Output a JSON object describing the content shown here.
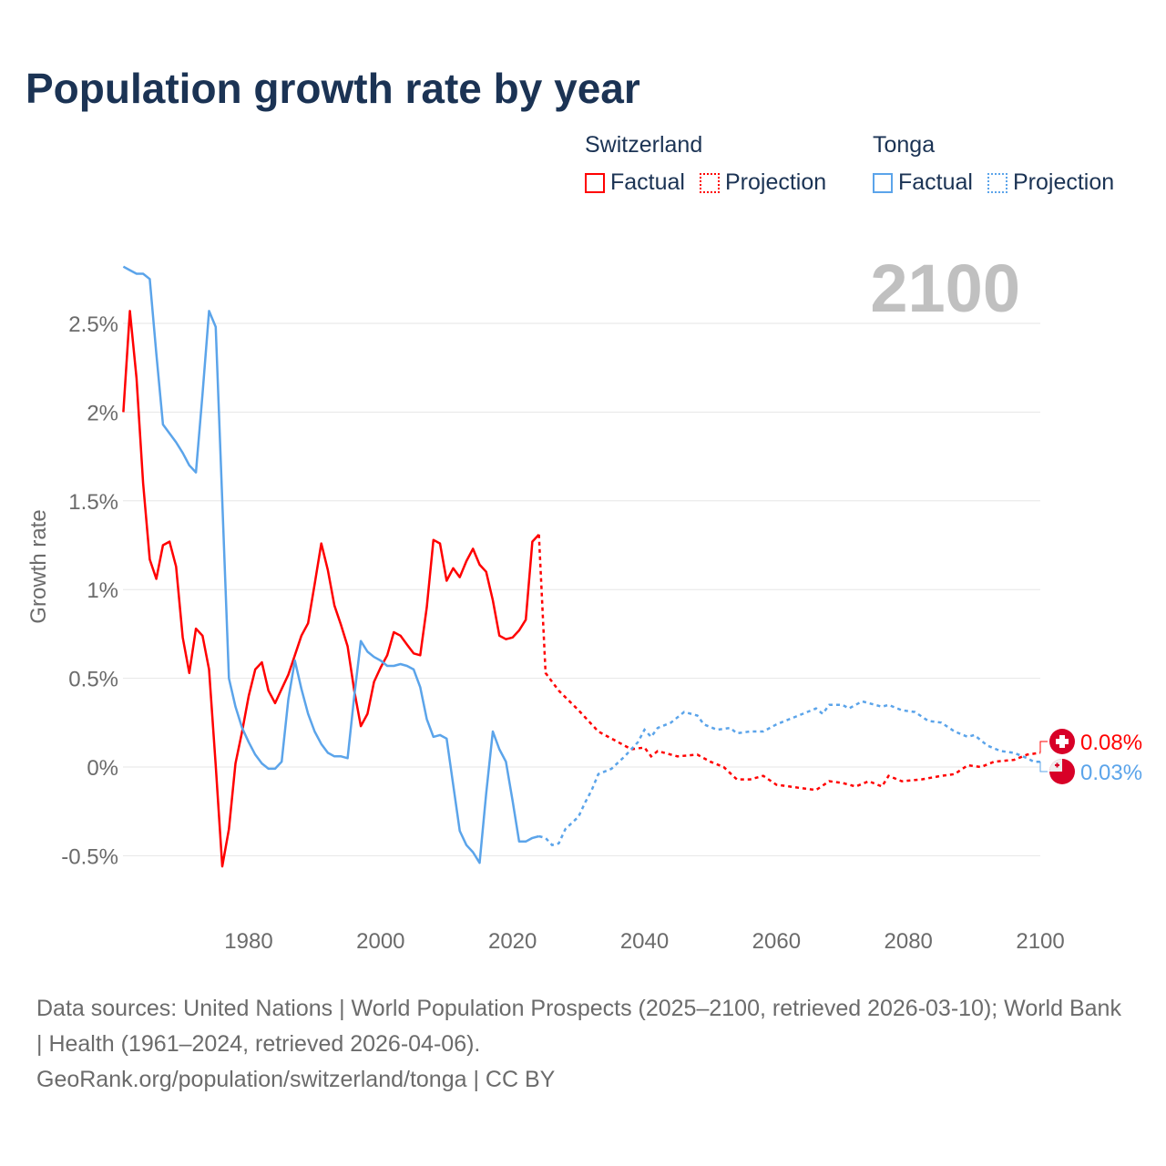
{
  "chart_data": {
    "type": "line",
    "title": "Population growth rate by year",
    "ylabel": "Growth rate",
    "xlabel": "",
    "xlim": [
      1961,
      2100
    ],
    "ylim": [
      -0.7,
      2.9
    ],
    "x_ticks": [
      1980,
      2000,
      2020,
      2040,
      2060,
      2080,
      2100
    ],
    "x_tick_labels": [
      "1980",
      "2000",
      "2020",
      "2040",
      "2060",
      "2080",
      "2100"
    ],
    "y_ticks": [
      -0.5,
      0,
      0.5,
      1,
      1.5,
      2,
      2.5
    ],
    "y_tick_labels": [
      "-0.5%",
      "0%",
      "0.5%",
      "1%",
      "1.5%",
      "2%",
      "2.5%"
    ],
    "grid": true,
    "current_year": "2100",
    "legend": {
      "placement": "top-right",
      "groups": [
        {
          "name": "Switzerland",
          "items": [
            "Factual",
            "Projection"
          ]
        },
        {
          "name": "Tonga",
          "items": [
            "Factual",
            "Projection"
          ]
        }
      ]
    },
    "series": [
      {
        "name": "Switzerland",
        "color": "#ff0000",
        "end_label": "0.08%",
        "factual": [
          [
            1961,
            2.0
          ],
          [
            1962,
            2.57
          ],
          [
            1963,
            2.19
          ],
          [
            1964,
            1.6
          ],
          [
            1965,
            1.17
          ],
          [
            1966,
            1.06
          ],
          [
            1967,
            1.25
          ],
          [
            1968,
            1.27
          ],
          [
            1969,
            1.13
          ],
          [
            1970,
            0.73
          ],
          [
            1971,
            0.53
          ],
          [
            1972,
            0.78
          ],
          [
            1973,
            0.74
          ],
          [
            1974,
            0.55
          ],
          [
            1975,
            0.01
          ],
          [
            1976,
            -0.56
          ],
          [
            1977,
            -0.35
          ],
          [
            1978,
            0.02
          ],
          [
            1979,
            0.2
          ],
          [
            1980,
            0.4
          ],
          [
            1981,
            0.55
          ],
          [
            1982,
            0.59
          ],
          [
            1983,
            0.43
          ],
          [
            1984,
            0.36
          ],
          [
            1985,
            0.44
          ],
          [
            1986,
            0.52
          ],
          [
            1987,
            0.63
          ],
          [
            1988,
            0.74
          ],
          [
            1989,
            0.81
          ],
          [
            1990,
            1.03
          ],
          [
            1991,
            1.26
          ],
          [
            1992,
            1.11
          ],
          [
            1993,
            0.91
          ],
          [
            1994,
            0.8
          ],
          [
            1995,
            0.68
          ],
          [
            1996,
            0.43
          ],
          [
            1997,
            0.23
          ],
          [
            1998,
            0.3
          ],
          [
            1999,
            0.48
          ],
          [
            2000,
            0.56
          ],
          [
            2001,
            0.63
          ],
          [
            2002,
            0.76
          ],
          [
            2003,
            0.74
          ],
          [
            2004,
            0.69
          ],
          [
            2005,
            0.64
          ],
          [
            2006,
            0.63
          ],
          [
            2007,
            0.9
          ],
          [
            2008,
            1.28
          ],
          [
            2009,
            1.26
          ],
          [
            2010,
            1.05
          ],
          [
            2011,
            1.12
          ],
          [
            2012,
            1.07
          ],
          [
            2013,
            1.16
          ],
          [
            2014,
            1.23
          ],
          [
            2015,
            1.14
          ],
          [
            2016,
            1.1
          ],
          [
            2017,
            0.94
          ],
          [
            2018,
            0.74
          ],
          [
            2019,
            0.72
          ],
          [
            2020,
            0.73
          ],
          [
            2021,
            0.77
          ],
          [
            2022,
            0.83
          ],
          [
            2023,
            1.27
          ],
          [
            2024,
            1.31
          ]
        ],
        "projection": [
          [
            2024,
            1.31
          ],
          [
            2025,
            0.53
          ],
          [
            2027,
            0.43
          ],
          [
            2030,
            0.32
          ],
          [
            2033,
            0.2
          ],
          [
            2036,
            0.14
          ],
          [
            2038,
            0.1
          ],
          [
            2040,
            0.11
          ],
          [
            2041,
            0.06
          ],
          [
            2042,
            0.09
          ],
          [
            2045,
            0.06
          ],
          [
            2048,
            0.07
          ],
          [
            2050,
            0.03
          ],
          [
            2052,
            0.0
          ],
          [
            2054,
            -0.07
          ],
          [
            2056,
            -0.07
          ],
          [
            2058,
            -0.05
          ],
          [
            2060,
            -0.1
          ],
          [
            2062,
            -0.11
          ],
          [
            2064,
            -0.12
          ],
          [
            2066,
            -0.13
          ],
          [
            2068,
            -0.08
          ],
          [
            2070,
            -0.09
          ],
          [
            2072,
            -0.11
          ],
          [
            2074,
            -0.08
          ],
          [
            2076,
            -0.11
          ],
          [
            2077,
            -0.05
          ],
          [
            2079,
            -0.08
          ],
          [
            2082,
            -0.07
          ],
          [
            2085,
            -0.05
          ],
          [
            2087,
            -0.04
          ],
          [
            2089,
            0.01
          ],
          [
            2091,
            0.0
          ],
          [
            2093,
            0.03
          ],
          [
            2096,
            0.04
          ],
          [
            2098,
            0.07
          ],
          [
            2100,
            0.08
          ]
        ]
      },
      {
        "name": "Tonga",
        "color": "#5ba4ea",
        "end_label": "0.03%",
        "factual": [
          [
            1961,
            2.82
          ],
          [
            1962,
            2.8
          ],
          [
            1963,
            2.78
          ],
          [
            1964,
            2.78
          ],
          [
            1965,
            2.75
          ],
          [
            1966,
            2.33
          ],
          [
            1967,
            1.93
          ],
          [
            1968,
            1.88
          ],
          [
            1969,
            1.83
          ],
          [
            1970,
            1.77
          ],
          [
            1971,
            1.7
          ],
          [
            1972,
            1.66
          ],
          [
            1973,
            2.1
          ],
          [
            1974,
            2.57
          ],
          [
            1975,
            2.48
          ],
          [
            1976,
            1.5
          ],
          [
            1977,
            0.5
          ],
          [
            1978,
            0.34
          ],
          [
            1979,
            0.22
          ],
          [
            1980,
            0.14
          ],
          [
            1981,
            0.07
          ],
          [
            1982,
            0.02
          ],
          [
            1983,
            -0.01
          ],
          [
            1984,
            -0.01
          ],
          [
            1985,
            0.03
          ],
          [
            1986,
            0.38
          ],
          [
            1987,
            0.6
          ],
          [
            1988,
            0.44
          ],
          [
            1989,
            0.3
          ],
          [
            1990,
            0.2
          ],
          [
            1991,
            0.13
          ],
          [
            1992,
            0.08
          ],
          [
            1993,
            0.06
          ],
          [
            1994,
            0.06
          ],
          [
            1995,
            0.05
          ],
          [
            1996,
            0.4
          ],
          [
            1997,
            0.71
          ],
          [
            1998,
            0.65
          ],
          [
            1999,
            0.62
          ],
          [
            2000,
            0.6
          ],
          [
            2001,
            0.57
          ],
          [
            2002,
            0.57
          ],
          [
            2003,
            0.58
          ],
          [
            2004,
            0.57
          ],
          [
            2005,
            0.55
          ],
          [
            2006,
            0.45
          ],
          [
            2007,
            0.27
          ],
          [
            2008,
            0.17
          ],
          [
            2009,
            0.18
          ],
          [
            2010,
            0.16
          ],
          [
            2011,
            -0.1
          ],
          [
            2012,
            -0.36
          ],
          [
            2013,
            -0.44
          ],
          [
            2014,
            -0.48
          ],
          [
            2015,
            -0.54
          ],
          [
            2016,
            -0.15
          ],
          [
            2017,
            0.2
          ],
          [
            2018,
            0.1
          ],
          [
            2019,
            0.03
          ],
          [
            2020,
            -0.19
          ],
          [
            2021,
            -0.42
          ],
          [
            2022,
            -0.42
          ],
          [
            2023,
            -0.4
          ],
          [
            2024,
            -0.39
          ]
        ],
        "projection": [
          [
            2024,
            -0.39
          ],
          [
            2025,
            -0.4
          ],
          [
            2026,
            -0.44
          ],
          [
            2027,
            -0.43
          ],
          [
            2028,
            -0.35
          ],
          [
            2030,
            -0.28
          ],
          [
            2031,
            -0.2
          ],
          [
            2032,
            -0.13
          ],
          [
            2033,
            -0.04
          ],
          [
            2035,
            -0.01
          ],
          [
            2037,
            0.06
          ],
          [
            2039,
            0.14
          ],
          [
            2040,
            0.21
          ],
          [
            2041,
            0.17
          ],
          [
            2042,
            0.22
          ],
          [
            2044,
            0.25
          ],
          [
            2046,
            0.31
          ],
          [
            2048,
            0.29
          ],
          [
            2049,
            0.24
          ],
          [
            2051,
            0.21
          ],
          [
            2053,
            0.22
          ],
          [
            2054,
            0.19
          ],
          [
            2056,
            0.2
          ],
          [
            2058,
            0.2
          ],
          [
            2060,
            0.24
          ],
          [
            2062,
            0.27
          ],
          [
            2064,
            0.3
          ],
          [
            2066,
            0.33
          ],
          [
            2067,
            0.3
          ],
          [
            2068,
            0.35
          ],
          [
            2070,
            0.35
          ],
          [
            2071,
            0.33
          ],
          [
            2073,
            0.37
          ],
          [
            2074,
            0.36
          ],
          [
            2076,
            0.34
          ],
          [
            2077,
            0.35
          ],
          [
            2079,
            0.32
          ],
          [
            2081,
            0.31
          ],
          [
            2083,
            0.26
          ],
          [
            2085,
            0.25
          ],
          [
            2087,
            0.2
          ],
          [
            2089,
            0.17
          ],
          [
            2090,
            0.18
          ],
          [
            2092,
            0.12
          ],
          [
            2094,
            0.09
          ],
          [
            2096,
            0.08
          ],
          [
            2098,
            0.05
          ],
          [
            2099,
            0.03
          ],
          [
            2100,
            0.03
          ]
        ]
      }
    ]
  },
  "footer": {
    "sources": "Data sources: United Nations | World Population Prospects (2025–2100, retrieved 2026-03-10); World Bank | Health (1961–2024, retrieved 2026-04-06).",
    "credit": "GeoRank.org/population/switzerland/tonga | CC BY"
  }
}
